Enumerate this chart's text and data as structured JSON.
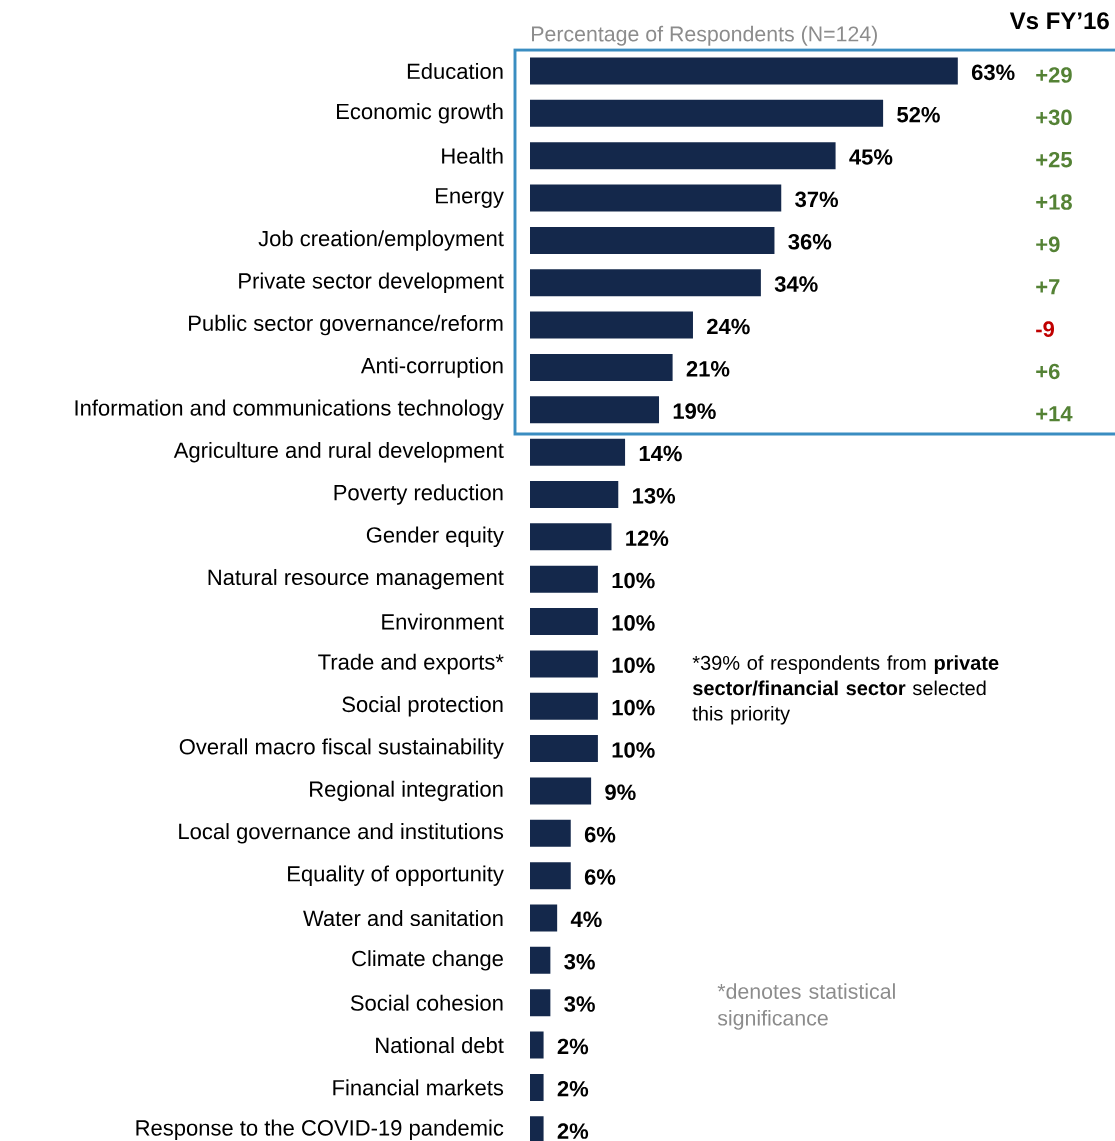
{
  "chart_data": {
    "type": "bar",
    "orientation": "horizontal",
    "title": "Percentage of Respondents (N=124)",
    "categories": [
      "Education",
      "Economic growth",
      "Health",
      "Energy",
      "Job creation/employment",
      "Private sector development",
      "Public sector governance/reform",
      "Anti-corruption",
      "Information and communications technology",
      "Agriculture and rural development",
      "Poverty reduction",
      "Gender equity",
      "Natural resource management",
      "Environment",
      "Trade and exports*",
      "Social protection",
      "Overall macro fiscal sustainability",
      "Regional integration",
      "Local governance and institutions",
      "Equality of opportunity",
      "Water and sanitation",
      "Climate change",
      "Social cohesion",
      "National debt",
      "Financial markets",
      "Response to the COVID-19 pandemic"
    ],
    "values": [
      63,
      52,
      45,
      37,
      36,
      34,
      24,
      21,
      19,
      14,
      13,
      12,
      10,
      10,
      10,
      10,
      10,
      9,
      6,
      6,
      4,
      3,
      3,
      2,
      2,
      2
    ],
    "value_labels": [
      "63%",
      "52%",
      "45%",
      "37%",
      "36%",
      "34%",
      "24%",
      "21%",
      "19%",
      "14%",
      "13%",
      "12%",
      "10%",
      "10%",
      "10%",
      "10%",
      "10%",
      "9%",
      "6%",
      "6%",
      "4%",
      "3%",
      "3%",
      "2%",
      "2%",
      "2%"
    ],
    "color": "#14284b",
    "annotations": [
      "Vs FY’16",
      "+29",
      "+30",
      "+25",
      "+18",
      "+9",
      "+7",
      "-9",
      "+6",
      "+14",
      "*39% of respondents from **private sector/financial sector** selected this priority",
      "*denotes statistical significance"
    ]
  }
}
